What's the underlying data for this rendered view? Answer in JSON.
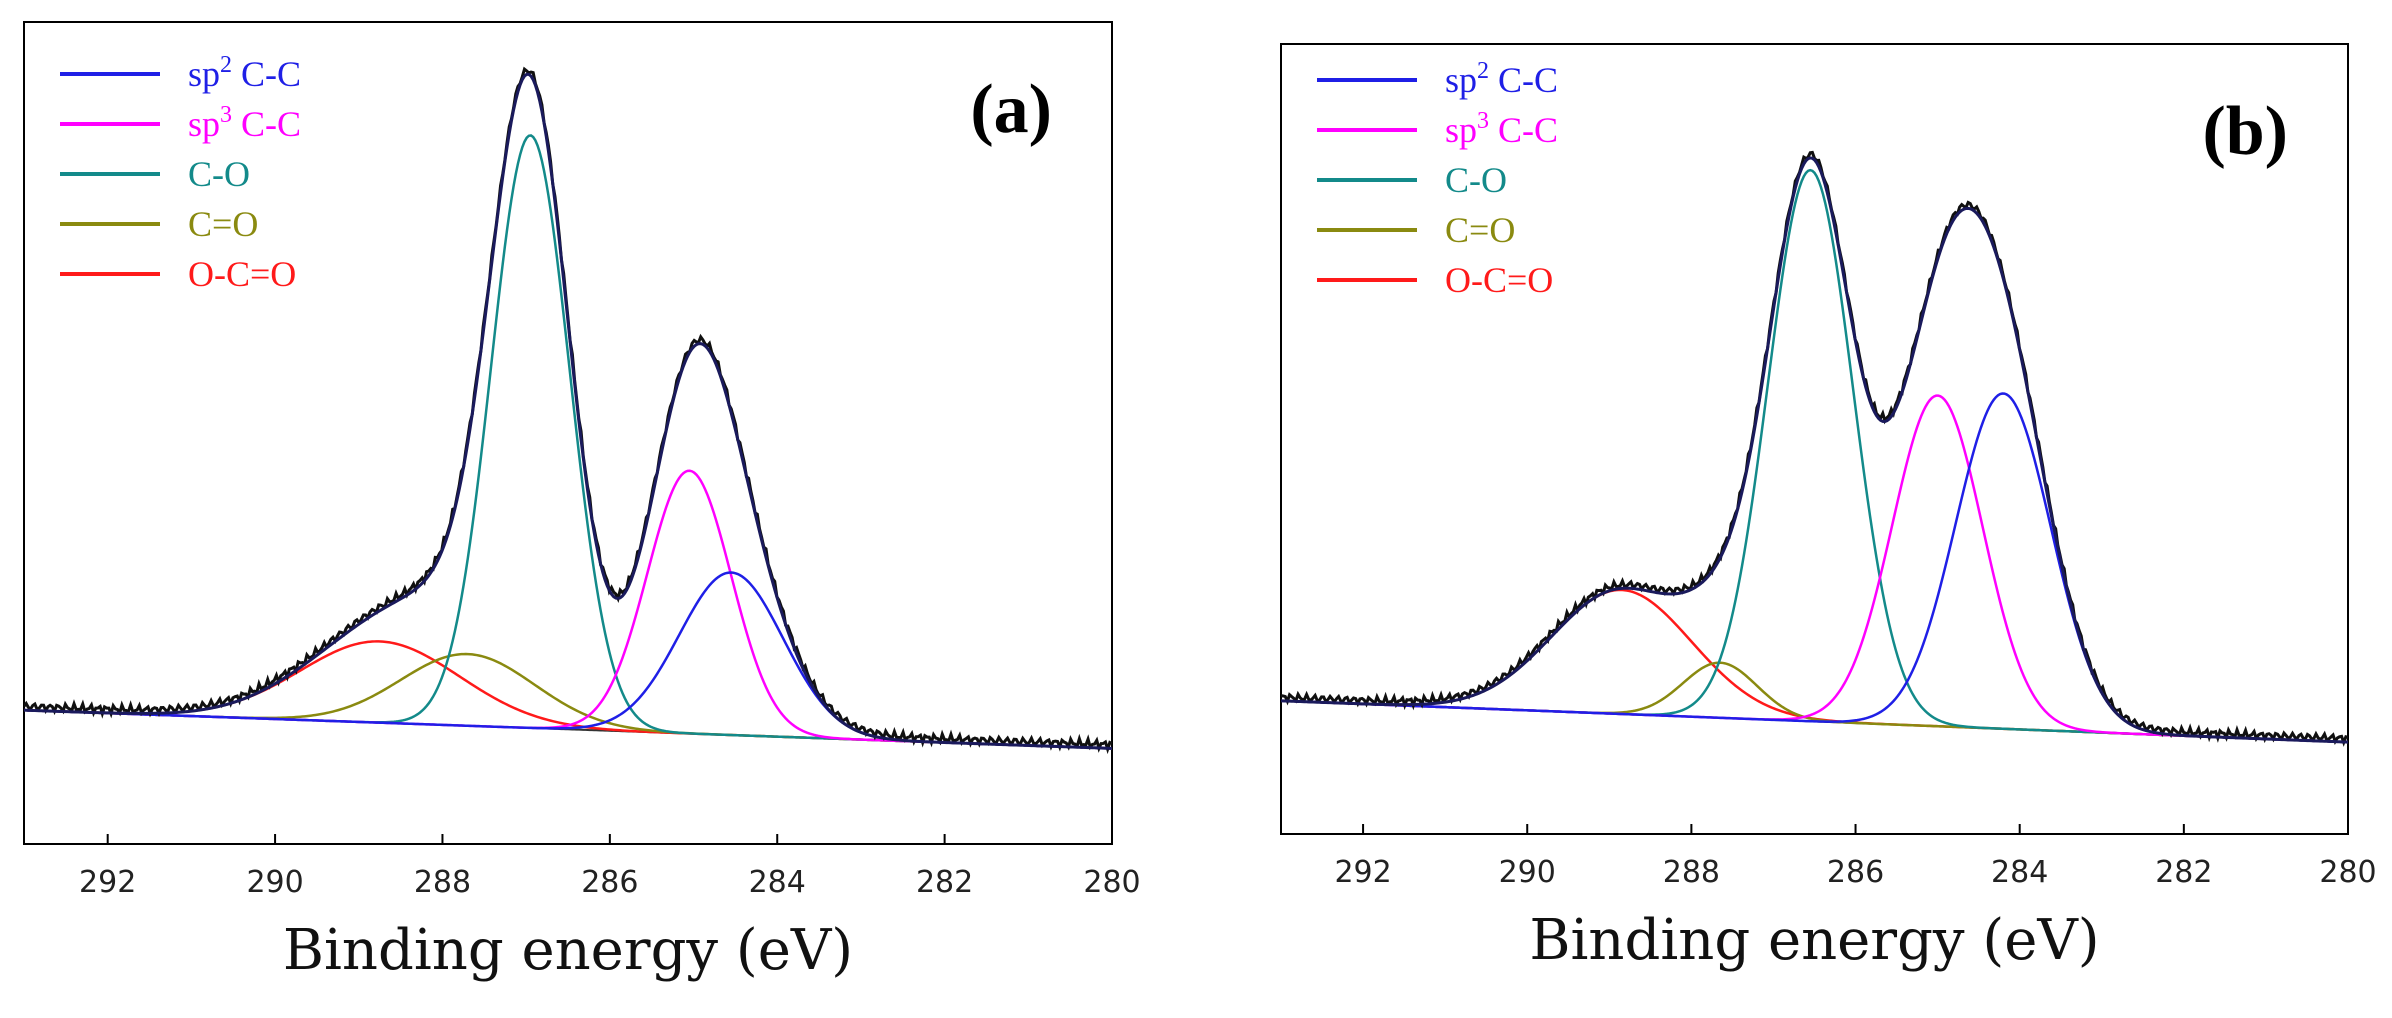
{
  "colors": {
    "sp2": "#1f1fe6",
    "sp3": "#ff00ff",
    "co": "#138a8a",
    "cdo": "#8a8a10",
    "ocdo": "#ff1a1a",
    "envelope": "#1a1a5c",
    "raw": "#101010"
  },
  "chart_data": [
    {
      "type": "line",
      "panel_label": "(a)",
      "xlabel": "Binding energy (eV)",
      "ylabel": "",
      "xlim": [
        293,
        280
      ],
      "x_reversed": true,
      "xticks": [
        292,
        290,
        288,
        286,
        284,
        282,
        280
      ],
      "yticks_shown": false,
      "grid": false,
      "legend_position": "top-left",
      "legend": [
        {
          "label": "sp",
          "sup": "2",
          "suffix": " C-C",
          "key": "sp2"
        },
        {
          "label": "sp",
          "sup": "3",
          "suffix": " C-C",
          "key": "sp3"
        },
        {
          "label": "C-O",
          "sup": "",
          "suffix": "",
          "key": "co"
        },
        {
          "label": "C=O",
          "sup": "",
          "suffix": "",
          "key": "cdo"
        },
        {
          "label": "O-C=O",
          "sup": "",
          "suffix": "",
          "key": "ocdo"
        }
      ],
      "baseline": {
        "x": [
          293,
          280
        ],
        "y": [
          0.08,
          0.0
        ]
      },
      "peaks": [
        {
          "key": "sp2",
          "center": 284.55,
          "sigma": 0.62,
          "height": 0.34
        },
        {
          "key": "sp3",
          "center": 285.05,
          "sigma": 0.5,
          "height": 0.55
        },
        {
          "key": "co",
          "center": 286.95,
          "sigma": 0.47,
          "height": 1.24
        },
        {
          "key": "cdo",
          "center": 287.7,
          "sigma": 0.8,
          "height": 0.15
        },
        {
          "key": "ocdo",
          "center": 288.75,
          "sigma": 0.95,
          "height": 0.17
        }
      ],
      "ylim": [
        -0.2,
        1.52
      ]
    },
    {
      "type": "line",
      "panel_label": "(b)",
      "xlabel": "Binding energy (eV)",
      "ylabel": "",
      "xlim": [
        293,
        280
      ],
      "x_reversed": true,
      "xticks": [
        292,
        290,
        288,
        286,
        284,
        282,
        280
      ],
      "yticks_shown": false,
      "grid": false,
      "legend_position": "top-left",
      "legend": [
        {
          "label": "sp",
          "sup": "2",
          "suffix": " C-C",
          "key": "sp2"
        },
        {
          "label": "sp",
          "sup": "3",
          "suffix": " C-C",
          "key": "sp3"
        },
        {
          "label": "C-O",
          "sup": "",
          "suffix": "",
          "key": "co"
        },
        {
          "label": "C=O",
          "sup": "",
          "suffix": "",
          "key": "cdo"
        },
        {
          "label": "O-C=O",
          "sup": "",
          "suffix": "",
          "key": "ocdo"
        }
      ],
      "baseline": {
        "x": [
          293,
          280
        ],
        "y": [
          0.09,
          0.0
        ]
      },
      "peaks": [
        {
          "key": "sp2",
          "center": 284.2,
          "sigma": 0.58,
          "height": 0.73
        },
        {
          "key": "sp3",
          "center": 285.0,
          "sigma": 0.55,
          "height": 0.72
        },
        {
          "key": "co",
          "center": 286.55,
          "sigma": 0.52,
          "height": 1.2
        },
        {
          "key": "cdo",
          "center": 287.65,
          "sigma": 0.45,
          "height": 0.12
        },
        {
          "key": "ocdo",
          "center": 288.85,
          "sigma": 0.85,
          "height": 0.27
        }
      ],
      "ylim": [
        -0.2,
        1.52
      ]
    }
  ]
}
